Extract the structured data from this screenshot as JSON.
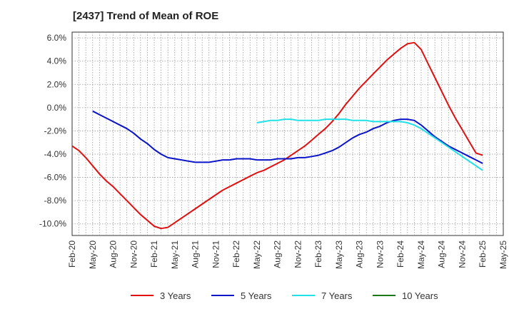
{
  "chart_data": {
    "type": "line",
    "title": "[2437]  Trend of Mean of ROE",
    "xlabel": "",
    "ylabel": "",
    "x_ticks": [
      "Feb-20",
      "May-20",
      "Aug-20",
      "Nov-20",
      "Feb-21",
      "May-21",
      "Aug-21",
      "Nov-21",
      "Feb-22",
      "May-22",
      "Aug-22",
      "Nov-22",
      "Feb-23",
      "May-23",
      "Aug-23",
      "Nov-23",
      "Feb-24",
      "May-24",
      "Aug-24",
      "Nov-24",
      "Feb-25",
      "May-25"
    ],
    "y_ticks": [
      6.0,
      4.0,
      2.0,
      0.0,
      -2.0,
      -4.0,
      -6.0,
      -8.0,
      -10.0
    ],
    "y_tick_labels": [
      "6.0%",
      "4.0%",
      "2.0%",
      "0.0%",
      "-2.0%",
      "-4.0%",
      "-6.0%",
      "-8.0%",
      "-10.0%"
    ],
    "ylim": [
      -11.0,
      6.5
    ],
    "grid": true,
    "legend_position": "bottom",
    "series": [
      {
        "name": "3 Years",
        "color": "#e01010",
        "x": [
          "2020-02",
          "2020-03",
          "2020-04",
          "2020-05",
          "2020-06",
          "2020-07",
          "2020-08",
          "2020-09",
          "2020-10",
          "2020-11",
          "2020-12",
          "2021-01",
          "2021-02",
          "2021-03",
          "2021-04",
          "2021-05",
          "2021-06",
          "2021-07",
          "2021-08",
          "2021-09",
          "2021-10",
          "2021-11",
          "2021-12",
          "2022-01",
          "2022-02",
          "2022-03",
          "2022-04",
          "2022-05",
          "2022-06",
          "2022-07",
          "2022-08",
          "2022-09",
          "2022-10",
          "2022-11",
          "2022-12",
          "2023-01",
          "2023-02",
          "2023-03",
          "2023-04",
          "2023-05",
          "2023-06",
          "2023-07",
          "2023-08",
          "2023-09",
          "2023-10",
          "2023-11",
          "2023-12",
          "2024-01",
          "2024-02",
          "2024-03",
          "2024-04",
          "2024-05",
          "2024-06",
          "2024-07",
          "2024-08",
          "2024-09",
          "2024-10",
          "2024-11",
          "2024-12",
          "2025-01",
          "2025-02"
        ],
        "values": [
          -3.3,
          -3.7,
          -4.3,
          -5.0,
          -5.7,
          -6.3,
          -6.8,
          -7.4,
          -8.0,
          -8.6,
          -9.2,
          -9.7,
          -10.2,
          -10.4,
          -10.3,
          -9.9,
          -9.5,
          -9.1,
          -8.7,
          -8.3,
          -7.9,
          -7.5,
          -7.1,
          -6.8,
          -6.5,
          -6.2,
          -5.9,
          -5.6,
          -5.4,
          -5.1,
          -4.8,
          -4.5,
          -4.1,
          -3.7,
          -3.3,
          -2.8,
          -2.3,
          -1.8,
          -1.2,
          -0.5,
          0.3,
          1.0,
          1.7,
          2.3,
          2.9,
          3.5,
          4.1,
          4.6,
          5.1,
          5.5,
          5.6,
          5.0,
          3.8,
          2.6,
          1.4,
          0.2,
          -0.9,
          -1.9,
          -2.9,
          -3.9,
          -4.1
        ]
      },
      {
        "name": "5 Years",
        "color": "#0a14c8",
        "x": [
          "2020-05",
          "2020-06",
          "2020-07",
          "2020-08",
          "2020-09",
          "2020-10",
          "2020-11",
          "2020-12",
          "2021-01",
          "2021-02",
          "2021-03",
          "2021-04",
          "2021-05",
          "2021-06",
          "2021-07",
          "2021-08",
          "2021-09",
          "2021-10",
          "2021-11",
          "2021-12",
          "2022-01",
          "2022-02",
          "2022-03",
          "2022-04",
          "2022-05",
          "2022-06",
          "2022-07",
          "2022-08",
          "2022-09",
          "2022-10",
          "2022-11",
          "2022-12",
          "2023-01",
          "2023-02",
          "2023-03",
          "2023-04",
          "2023-05",
          "2023-06",
          "2023-07",
          "2023-08",
          "2023-09",
          "2023-10",
          "2023-11",
          "2023-12",
          "2024-01",
          "2024-02",
          "2024-03",
          "2024-04",
          "2024-05",
          "2024-06",
          "2024-07",
          "2024-08",
          "2024-09",
          "2024-10",
          "2024-11",
          "2024-12",
          "2025-01",
          "2025-02"
        ],
        "values": [
          -0.3,
          -0.6,
          -0.9,
          -1.2,
          -1.5,
          -1.8,
          -2.2,
          -2.7,
          -3.1,
          -3.6,
          -4.0,
          -4.3,
          -4.4,
          -4.5,
          -4.6,
          -4.7,
          -4.7,
          -4.7,
          -4.6,
          -4.5,
          -4.5,
          -4.4,
          -4.4,
          -4.4,
          -4.5,
          -4.5,
          -4.5,
          -4.4,
          -4.4,
          -4.4,
          -4.3,
          -4.3,
          -4.2,
          -4.1,
          -3.9,
          -3.7,
          -3.4,
          -3.0,
          -2.6,
          -2.3,
          -2.1,
          -1.8,
          -1.6,
          -1.3,
          -1.1,
          -1.0,
          -1.0,
          -1.1,
          -1.5,
          -2.0,
          -2.5,
          -2.9,
          -3.3,
          -3.6,
          -3.9,
          -4.2,
          -4.5,
          -4.8
        ]
      },
      {
        "name": "7 Years",
        "color": "#20e0e8",
        "x": [
          "2022-05",
          "2022-06",
          "2022-07",
          "2022-08",
          "2022-09",
          "2022-10",
          "2022-11",
          "2022-12",
          "2023-01",
          "2023-02",
          "2023-03",
          "2023-04",
          "2023-05",
          "2023-06",
          "2023-07",
          "2023-08",
          "2023-09",
          "2023-10",
          "2023-11",
          "2023-12",
          "2024-01",
          "2024-02",
          "2024-03",
          "2024-04",
          "2024-05",
          "2024-06",
          "2024-07",
          "2024-08",
          "2024-09",
          "2024-10",
          "2024-11",
          "2024-12",
          "2025-01",
          "2025-02"
        ],
        "values": [
          -1.3,
          -1.2,
          -1.1,
          -1.1,
          -1.0,
          -1.0,
          -1.1,
          -1.1,
          -1.1,
          -1.1,
          -1.0,
          -1.0,
          -1.0,
          -1.0,
          -1.1,
          -1.1,
          -1.1,
          -1.2,
          -1.2,
          -1.2,
          -1.2,
          -1.2,
          -1.3,
          -1.5,
          -1.8,
          -2.2,
          -2.6,
          -3.0,
          -3.4,
          -3.8,
          -4.2,
          -4.6,
          -5.0,
          -5.4
        ]
      },
      {
        "name": "10 Years",
        "color": "#1a7a1a",
        "x": [],
        "values": []
      }
    ]
  }
}
